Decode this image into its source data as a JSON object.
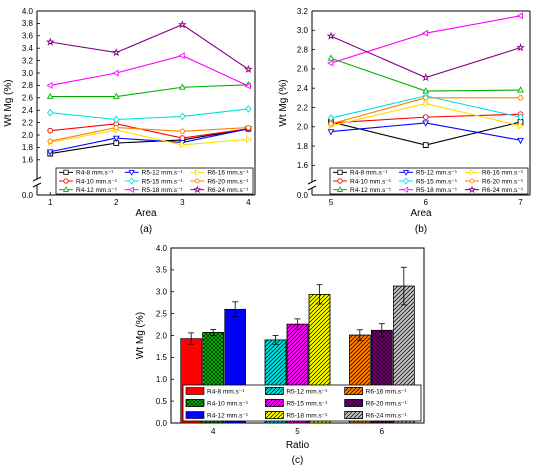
{
  "chart_data": [
    {
      "panel": "(a)",
      "type": "line",
      "xlabel": "Area",
      "ylabel": "Wt Mg (%)",
      "x": [
        1,
        2,
        3,
        4
      ],
      "xticks": [
        "1",
        "2",
        "3",
        "4"
      ],
      "yticks": [
        "0.0",
        "1.6",
        "1.8",
        "2.0",
        "2.2",
        "2.4",
        "2.6",
        "2.8",
        "3.0",
        "3.2",
        "3.4",
        "3.6",
        "3.8",
        "4.0"
      ],
      "ylim": [
        1.5,
        4.0
      ],
      "axis_break": true,
      "grid": false,
      "legend_position": "bottom",
      "series": [
        {
          "name": "R4-8 mm.s⁻¹",
          "color": "#000000",
          "marker": "square",
          "values": [
            1.7,
            1.87,
            1.92,
            2.1
          ]
        },
        {
          "name": "R4-10 mm.s⁻¹",
          "color": "#ff0000",
          "marker": "circle",
          "values": [
            2.07,
            2.18,
            1.95,
            2.1
          ]
        },
        {
          "name": "R4-12 mm.s⁻¹",
          "color": "#00b000",
          "marker": "triangle",
          "values": [
            2.62,
            2.62,
            2.77,
            2.81
          ]
        },
        {
          "name": "R5-12 mm.s⁻¹",
          "color": "#0000ff",
          "marker": "triangle-down",
          "values": [
            1.73,
            1.95,
            1.88,
            2.1
          ]
        },
        {
          "name": "R5-15 mm.s⁻¹",
          "color": "#00e0e0",
          "marker": "diamond",
          "values": [
            2.36,
            2.25,
            2.3,
            2.42
          ]
        },
        {
          "name": "R5-18 mm.s⁻¹",
          "color": "#ff00ff",
          "marker": "triangle-left",
          "values": [
            2.8,
            3.0,
            3.28,
            2.79
          ]
        },
        {
          "name": "R6-16 mm.s⁻¹",
          "color": "#ffdd00",
          "marker": "triangle-right",
          "values": [
            1.88,
            2.08,
            1.84,
            1.93
          ]
        },
        {
          "name": "R6-20 mm.s⁻¹",
          "color": "#ff8000",
          "marker": "hexagon",
          "values": [
            1.9,
            2.12,
            2.06,
            2.12
          ]
        },
        {
          "name": "R6-24 mm.s⁻¹",
          "color": "#800080",
          "marker": "star",
          "values": [
            3.5,
            3.33,
            3.78,
            3.06
          ]
        }
      ]
    },
    {
      "panel": "(b)",
      "type": "line",
      "xlabel": "Area",
      "ylabel": "Wt Mg (%)",
      "x": [
        5,
        6,
        7
      ],
      "xticks": [
        "5",
        "6",
        "7"
      ],
      "yticks": [
        "0.0",
        "1.6",
        "1.8",
        "2.0",
        "2.2",
        "2.4",
        "2.6",
        "2.8",
        "3.0",
        "3.2"
      ],
      "ylim": [
        1.5,
        3.2
      ],
      "axis_break": true,
      "grid": false,
      "legend_position": "bottom",
      "series": [
        {
          "name": "R4-8 mm.s⁻¹",
          "color": "#000000",
          "marker": "square",
          "values": [
            2.05,
            1.81,
            2.05
          ]
        },
        {
          "name": "R4-10 mm.s⁻¹",
          "color": "#ff0000",
          "marker": "circle",
          "values": [
            2.04,
            2.1,
            2.13
          ]
        },
        {
          "name": "R4-12 mm.s⁻¹",
          "color": "#00b000",
          "marker": "triangle",
          "values": [
            2.71,
            2.37,
            2.38
          ]
        },
        {
          "name": "R5-12 mm.s⁻¹",
          "color": "#0000ff",
          "marker": "triangle-down",
          "values": [
            1.95,
            2.04,
            1.86
          ]
        },
        {
          "name": "R5-15 mm.s⁻¹",
          "color": "#00e0e0",
          "marker": "diamond",
          "values": [
            2.09,
            2.32,
            2.1
          ]
        },
        {
          "name": "R5-18 mm.s⁻¹",
          "color": "#ff00ff",
          "marker": "triangle-left",
          "values": [
            2.66,
            2.97,
            3.15
          ]
        },
        {
          "name": "R6-16 mm.s⁻¹",
          "color": "#ffdd00",
          "marker": "triangle-right",
          "values": [
            2.01,
            2.24,
            2.01
          ]
        },
        {
          "name": "R6-20 mm.s⁻¹",
          "color": "#ff8000",
          "marker": "hexagon",
          "values": [
            2.03,
            2.3,
            2.3
          ]
        },
        {
          "name": "R6-24 mm.s⁻¹",
          "color": "#800080",
          "marker": "star",
          "values": [
            2.94,
            2.51,
            2.82
          ]
        }
      ]
    },
    {
      "panel": "(c)",
      "type": "bar",
      "xlabel": "Ratio",
      "ylabel": "Wt Mg (%)",
      "categories": [
        "4",
        "5",
        "6"
      ],
      "yticks": [
        "0.0",
        "0.5",
        "1.0",
        "1.5",
        "2.0",
        "2.5",
        "3.0",
        "3.5",
        "4.0"
      ],
      "ylim": [
        0,
        4.0
      ],
      "grid": false,
      "legend_position": "bottom",
      "groups": [
        {
          "category": "4",
          "bars": [
            {
              "name": "R4-8 mm.s⁻¹",
              "value": 1.93,
              "error": 0.13,
              "color": "#ff0000",
              "pattern": "solid"
            },
            {
              "name": "R4-10 mm.s⁻¹",
              "value": 2.07,
              "error": 0.07,
              "color": "#00c000",
              "pattern": "cross"
            },
            {
              "name": "R4-12 mm.s⁻¹",
              "value": 2.6,
              "error": 0.17,
              "color": "#0000ff",
              "pattern": "solid"
            }
          ]
        },
        {
          "category": "5",
          "bars": [
            {
              "name": "R5-12 mm.s⁻¹",
              "value": 1.9,
              "error": 0.1,
              "color": "#00e0e0",
              "pattern": "diagonal"
            },
            {
              "name": "R5-15 mm.s⁻¹",
              "value": 2.26,
              "error": 0.12,
              "color": "#ff00ff",
              "pattern": "diagonal"
            },
            {
              "name": "R5-18 mm.s⁻¹",
              "value": 2.94,
              "error": 0.22,
              "color": "#ffff00",
              "pattern": "diagonal"
            }
          ]
        },
        {
          "category": "6",
          "bars": [
            {
              "name": "R6-16 mm.s⁻¹",
              "value": 2.01,
              "error": 0.12,
              "color": "#ff8000",
              "pattern": "diagonal"
            },
            {
              "name": "R6-20 mm.s⁻¹",
              "value": 2.12,
              "error": 0.15,
              "color": "#800080",
              "pattern": "cross"
            },
            {
              "name": "R6-24 mm.s⁻¹",
              "value": 3.13,
              "error": 0.43,
              "color": "#c0c0c0",
              "pattern": "diagonal"
            }
          ]
        }
      ]
    }
  ]
}
